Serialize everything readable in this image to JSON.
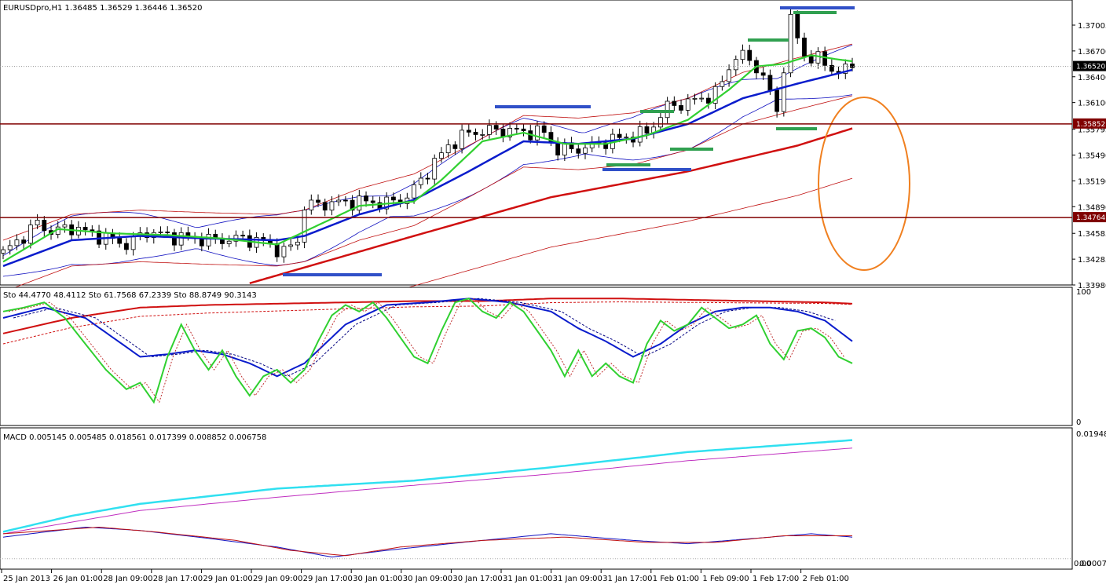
{
  "price_pane": {
    "header": "EURUSDpro,H1  1.36485 1.36529 1.36446 1.36520",
    "current_price": 1.3652,
    "current_price_label": "1.36520",
    "levels": [
      {
        "value": 1.35852,
        "label": "1.35852",
        "color": "#800000"
      },
      {
        "value": 1.34764,
        "label": "1.34764",
        "color": "#800000"
      }
    ],
    "yticks": [
      {
        "v": 1.37,
        "label": "1.37005"
      },
      {
        "v": 1.367,
        "label": "1.36700"
      },
      {
        "v": 1.364,
        "label": "1.36400"
      },
      {
        "v": 1.361,
        "label": "1.36100"
      },
      {
        "v": 1.3579,
        "label": "1.35795"
      },
      {
        "v": 1.3549,
        "label": "1.35490"
      },
      {
        "v": 1.3519,
        "label": "1.35190"
      },
      {
        "v": 1.3489,
        "label": "1.34890"
      },
      {
        "v": 1.3458,
        "label": "1.34585"
      },
      {
        "v": 1.3428,
        "label": "1.34285"
      },
      {
        "v": 1.3398,
        "label": "1.33980"
      }
    ]
  },
  "stoch_pane": {
    "header": "Sto 44.4770 48.4112  Sto 61.7568 67.2339  Sto 88.8749 90.3143",
    "ytop_label": "100",
    "ybottom_label": "0"
  },
  "macd_pane": {
    "header": "MACD 0.005145 0.005485 0.018561 0.017399 0.008852 0.006758",
    "ytop_label": "0.01948",
    "ybottom_label": "0.00074",
    "ybottom_label2": "0.00"
  },
  "xaxis": [
    {
      "label": "25 Jan 2013"
    },
    {
      "label": "26 Jan 01:00"
    },
    {
      "label": "28 Jan 09:00"
    },
    {
      "label": "28 Jan 17:00"
    },
    {
      "label": "29 Jan 01:00"
    },
    {
      "label": "29 Jan 09:00"
    },
    {
      "label": "29 Jan 17:00"
    },
    {
      "label": "30 Jan 01:00"
    },
    {
      "label": "30 Jan 09:00"
    },
    {
      "label": "30 Jan 17:00"
    },
    {
      "label": "31 Jan 01:00"
    },
    {
      "label": "31 Jan 09:00"
    },
    {
      "label": "31 Jan 17:00"
    },
    {
      "label": "1 Feb 01:00"
    },
    {
      "label": "1 Feb 09:00"
    },
    {
      "label": "1 Feb 17:00"
    },
    {
      "label": "2 Feb 01:00"
    }
  ],
  "chart_data": {
    "type": "line",
    "symbol": "EURUSDpro",
    "timeframe": "H1",
    "ohlc_last": {
      "open": 1.36485,
      "high": 1.36529,
      "low": 1.36446,
      "close": 1.3652
    },
    "close_path": [
      [
        0,
        1.3435
      ],
      [
        3,
        1.3455
      ],
      [
        5,
        1.347
      ],
      [
        7,
        1.346
      ],
      [
        10,
        1.3465
      ],
      [
        14,
        1.3455
      ],
      [
        18,
        1.3445
      ],
      [
        21,
        1.346
      ],
      [
        24,
        1.3455
      ],
      [
        28,
        1.3452
      ],
      [
        31,
        1.345
      ],
      [
        35,
        1.3452
      ],
      [
        38,
        1.3448
      ],
      [
        41,
        1.3436
      ],
      [
        43,
        1.345
      ],
      [
        44,
        1.349
      ],
      [
        48,
        1.3493
      ],
      [
        52,
        1.3495
      ],
      [
        56,
        1.3493
      ],
      [
        59,
        1.35
      ],
      [
        62,
        1.353
      ],
      [
        65,
        1.356
      ],
      [
        68,
        1.3575
      ],
      [
        72,
        1.3578
      ],
      [
        76,
        1.3576
      ],
      [
        79,
        1.3575
      ],
      [
        81,
        1.3555
      ],
      [
        85,
        1.3557
      ],
      [
        88,
        1.3565
      ],
      [
        91,
        1.357
      ],
      [
        94,
        1.3575
      ],
      [
        97,
        1.3605
      ],
      [
        100,
        1.361
      ],
      [
        104,
        1.362
      ],
      [
        107,
        1.3665
      ],
      [
        109,
        1.366
      ],
      [
        111,
        1.364
      ],
      [
        113,
        1.36
      ],
      [
        115,
        1.3705
      ],
      [
        117,
        1.3665
      ],
      [
        119,
        1.366
      ],
      [
        121,
        1.365
      ],
      [
        122,
        1.3645
      ],
      [
        124,
        1.3652
      ]
    ],
    "sma20_path": [
      [
        0,
        1.342
      ],
      [
        10,
        1.345
      ],
      [
        20,
        1.3455
      ],
      [
        30,
        1.3452
      ],
      [
        40,
        1.345
      ],
      [
        44,
        1.3455
      ],
      [
        52,
        1.348
      ],
      [
        60,
        1.3497
      ],
      [
        68,
        1.353
      ],
      [
        76,
        1.3565
      ],
      [
        84,
        1.3562
      ],
      [
        92,
        1.3568
      ],
      [
        100,
        1.3585
      ],
      [
        108,
        1.3615
      ],
      [
        116,
        1.3632
      ],
      [
        124,
        1.3648
      ]
    ],
    "sma5_path": [
      [
        0,
        1.3425
      ],
      [
        8,
        1.3463
      ],
      [
        16,
        1.3458
      ],
      [
        24,
        1.3456
      ],
      [
        32,
        1.3452
      ],
      [
        40,
        1.3445
      ],
      [
        44,
        1.346
      ],
      [
        52,
        1.349
      ],
      [
        60,
        1.3495
      ],
      [
        64,
        1.352
      ],
      [
        70,
        1.3565
      ],
      [
        76,
        1.3575
      ],
      [
        82,
        1.3562
      ],
      [
        88,
        1.3562
      ],
      [
        94,
        1.3572
      ],
      [
        100,
        1.359
      ],
      [
        106,
        1.3625
      ],
      [
        110,
        1.3652
      ],
      [
        114,
        1.3655
      ],
      [
        118,
        1.3665
      ],
      [
        122,
        1.366
      ],
      [
        124,
        1.3658
      ]
    ],
    "sma100_path": [
      [
        36,
        1.34
      ],
      [
        60,
        1.3455
      ],
      [
        80,
        1.35
      ],
      [
        100,
        1.353
      ],
      [
        116,
        1.356
      ],
      [
        124,
        1.358
      ]
    ],
    "stoch_fast": [
      [
        0,
        85
      ],
      [
        3,
        88
      ],
      [
        6,
        92
      ],
      [
        9,
        80
      ],
      [
        12,
        60
      ],
      [
        15,
        40
      ],
      [
        18,
        25
      ],
      [
        20,
        30
      ],
      [
        22,
        15
      ],
      [
        24,
        50
      ],
      [
        26,
        75
      ],
      [
        28,
        55
      ],
      [
        30,
        40
      ],
      [
        32,
        55
      ],
      [
        34,
        35
      ],
      [
        36,
        20
      ],
      [
        38,
        35
      ],
      [
        40,
        40
      ],
      [
        42,
        30
      ],
      [
        44,
        40
      ],
      [
        46,
        62
      ],
      [
        48,
        82
      ],
      [
        50,
        90
      ],
      [
        52,
        85
      ],
      [
        54,
        92
      ],
      [
        56,
        80
      ],
      [
        58,
        65
      ],
      [
        60,
        50
      ],
      [
        62,
        45
      ],
      [
        64,
        70
      ],
      [
        66,
        92
      ],
      [
        68,
        95
      ],
      [
        70,
        85
      ],
      [
        72,
        80
      ],
      [
        74,
        92
      ],
      [
        76,
        85
      ],
      [
        78,
        70
      ],
      [
        80,
        55
      ],
      [
        82,
        35
      ],
      [
        84,
        55
      ],
      [
        86,
        35
      ],
      [
        88,
        45
      ],
      [
        90,
        35
      ],
      [
        92,
        30
      ],
      [
        94,
        60
      ],
      [
        96,
        78
      ],
      [
        98,
        70
      ],
      [
        100,
        75
      ],
      [
        102,
        88
      ],
      [
        104,
        80
      ],
      [
        106,
        72
      ],
      [
        108,
        75
      ],
      [
        110,
        82
      ],
      [
        112,
        60
      ],
      [
        114,
        48
      ],
      [
        116,
        70
      ],
      [
        118,
        72
      ],
      [
        120,
        65
      ],
      [
        122,
        50
      ],
      [
        124,
        45
      ]
    ],
    "stoch_mid": [
      [
        0,
        80
      ],
      [
        6,
        88
      ],
      [
        12,
        80
      ],
      [
        16,
        65
      ],
      [
        20,
        50
      ],
      [
        24,
        52
      ],
      [
        28,
        55
      ],
      [
        32,
        52
      ],
      [
        36,
        45
      ],
      [
        40,
        35
      ],
      [
        44,
        45
      ],
      [
        50,
        75
      ],
      [
        56,
        90
      ],
      [
        62,
        92
      ],
      [
        68,
        95
      ],
      [
        74,
        92
      ],
      [
        80,
        85
      ],
      [
        84,
        72
      ],
      [
        88,
        62
      ],
      [
        92,
        50
      ],
      [
        96,
        60
      ],
      [
        100,
        75
      ],
      [
        104,
        85
      ],
      [
        108,
        88
      ],
      [
        112,
        88
      ],
      [
        116,
        85
      ],
      [
        120,
        78
      ],
      [
        124,
        62
      ]
    ],
    "stoch_slow": [
      [
        0,
        68
      ],
      [
        10,
        80
      ],
      [
        20,
        88
      ],
      [
        30,
        90
      ],
      [
        40,
        91
      ],
      [
        50,
        92
      ],
      [
        60,
        93
      ],
      [
        70,
        93
      ],
      [
        80,
        95
      ],
      [
        90,
        95
      ],
      [
        100,
        94
      ],
      [
        110,
        93
      ],
      [
        120,
        92
      ],
      [
        124,
        91
      ]
    ],
    "macd_main": [
      [
        0,
        0.0048
      ],
      [
        10,
        0.0072
      ],
      [
        20,
        0.009
      ],
      [
        40,
        0.0113
      ],
      [
        60,
        0.0125
      ],
      [
        80,
        0.0145
      ],
      [
        100,
        0.0168
      ],
      [
        124,
        0.0186
      ]
    ],
    "macd_signal": [
      [
        0,
        0.0045
      ],
      [
        20,
        0.008
      ],
      [
        40,
        0.01
      ],
      [
        60,
        0.0118
      ],
      [
        80,
        0.0135
      ],
      [
        100,
        0.0155
      ],
      [
        124,
        0.0174
      ]
    ],
    "macd_low_a": [
      [
        0,
        0.004
      ],
      [
        12,
        0.0055
      ],
      [
        20,
        0.005
      ],
      [
        30,
        0.0038
      ],
      [
        40,
        0.0025
      ],
      [
        48,
        0.001
      ],
      [
        56,
        0.002
      ],
      [
        68,
        0.0033
      ],
      [
        80,
        0.0045
      ],
      [
        92,
        0.0035
      ],
      [
        100,
        0.003
      ],
      [
        112,
        0.004
      ],
      [
        118,
        0.0045
      ],
      [
        124,
        0.004
      ]
    ],
    "macd_low_b": [
      [
        0,
        0.0045
      ],
      [
        14,
        0.0055
      ],
      [
        22,
        0.0048
      ],
      [
        34,
        0.0035
      ],
      [
        42,
        0.002
      ],
      [
        50,
        0.0012
      ],
      [
        58,
        0.0025
      ],
      [
        70,
        0.0035
      ],
      [
        82,
        0.004
      ],
      [
        94,
        0.0032
      ],
      [
        104,
        0.0032
      ],
      [
        114,
        0.0042
      ],
      [
        124,
        0.0042
      ]
    ]
  }
}
